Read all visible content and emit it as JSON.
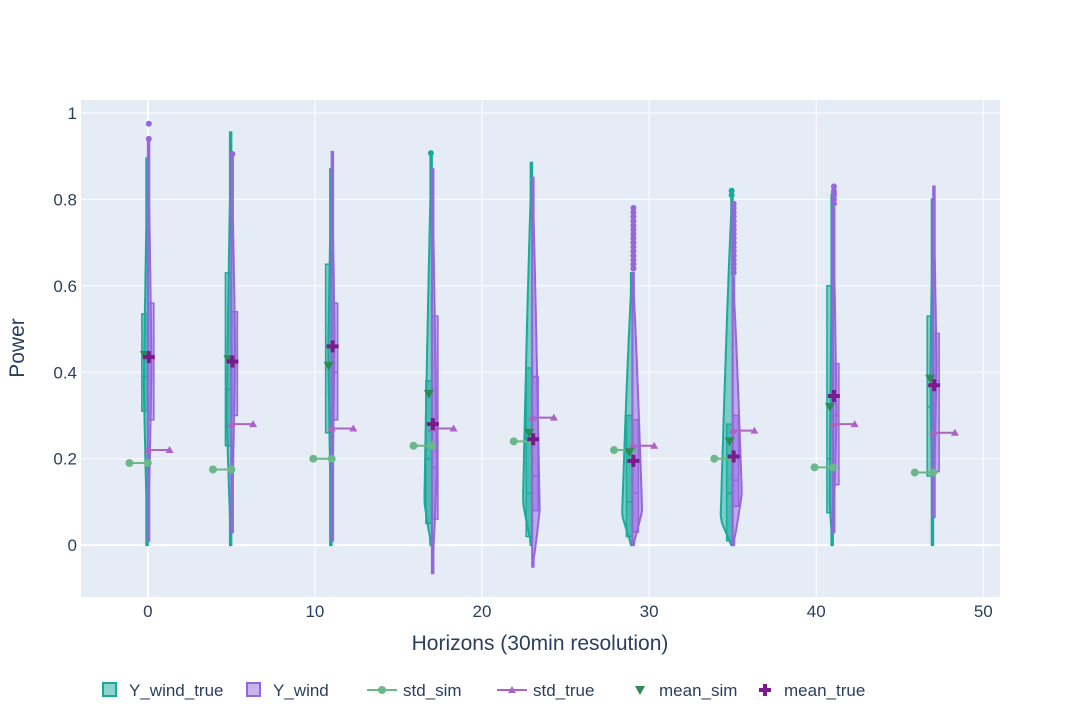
{
  "chart_data": {
    "type": "violin",
    "title": "",
    "xlabel": "Horizons (30min resolution)",
    "ylabel": "Power",
    "xlim": [
      -4,
      51
    ],
    "ylim": [
      -0.12,
      1.03
    ],
    "xticks": [
      0,
      10,
      20,
      30,
      40,
      50
    ],
    "yticks": [
      0,
      0.2,
      0.4,
      0.6,
      0.8,
      1
    ],
    "grid": true,
    "legend_position": "bottom",
    "colors": {
      "plot_bg": "#e5ecf6",
      "grid": "#ffffff",
      "Y_wind_true": "#1aaa9b",
      "Y_wind": "#9467dd",
      "std_sim": "#6cb88a",
      "std_true": "#ab63c4",
      "mean_sim": "#2e8b57",
      "mean_true": "#7b1a8c"
    },
    "legend": [
      {
        "name": "Y_wind_true",
        "kind": "violin-true"
      },
      {
        "name": "Y_wind",
        "kind": "violin-pred"
      },
      {
        "name": "std_sim",
        "kind": "line-circle"
      },
      {
        "name": "std_true",
        "kind": "line-triangle"
      },
      {
        "name": "mean_sim",
        "kind": "triangle-down"
      },
      {
        "name": "mean_true",
        "kind": "cross"
      }
    ],
    "horizons": [
      {
        "x": 0,
        "true": {
          "min": 0.0,
          "max": 0.895,
          "q1": 0.31,
          "median": 0.39,
          "q3": 0.535,
          "mode": 0.37,
          "w": 0.24
        },
        "pred": {
          "min": 0.01,
          "max": 0.94,
          "q1": 0.29,
          "median": 0.44,
          "q3": 0.56,
          "mode": 0.42,
          "w": 0.22
        },
        "outliers_true": [],
        "outliers_pred": [
          0.975,
          0.94
        ],
        "std_sim": 0.19,
        "std_true": 0.22,
        "mean_sim": 0.44,
        "mean_true": 0.435
      },
      {
        "x": 5,
        "true": {
          "min": 0.0,
          "max": 0.955,
          "q1": 0.23,
          "median": 0.36,
          "q3": 0.63,
          "mode": 0.3,
          "w": 0.28
        },
        "pred": {
          "min": 0.03,
          "max": 0.9,
          "q1": 0.3,
          "median": 0.42,
          "q3": 0.54,
          "mode": 0.45,
          "w": 0.23
        },
        "outliers_true": [],
        "outliers_pred": [
          0.905
        ],
        "std_sim": 0.175,
        "std_true": 0.28,
        "mean_sim": 0.43,
        "mean_true": 0.425
      },
      {
        "x": 11,
        "true": {
          "min": 0.0,
          "max": 0.87,
          "q1": 0.26,
          "median": 0.42,
          "q3": 0.65,
          "mode": 0.45,
          "w": 0.2
        },
        "pred": {
          "min": 0.01,
          "max": 0.91,
          "q1": 0.29,
          "median": 0.4,
          "q3": 0.56,
          "mode": 0.48,
          "w": 0.17
        },
        "outliers_true": [],
        "outliers_pred": [],
        "std_sim": 0.2,
        "std_true": 0.27,
        "mean_sim": 0.415,
        "mean_true": 0.46
      },
      {
        "x": 17,
        "true": {
          "min": 0.0,
          "max": 0.905,
          "q1": 0.05,
          "median": 0.2,
          "q3": 0.38,
          "mode": 0.1,
          "w": 0.45
        },
        "pred": {
          "min": -0.065,
          "max": 0.87,
          "q1": 0.06,
          "median": 0.18,
          "q3": 0.53,
          "mode": 0.18,
          "w": 0.3
        },
        "outliers_true": [
          0.907
        ],
        "outliers_pred": [],
        "std_sim": 0.23,
        "std_true": 0.27,
        "mean_sim": 0.35,
        "mean_true": 0.28
      },
      {
        "x": 23,
        "true": {
          "min": 0.0,
          "max": 0.885,
          "q1": 0.02,
          "median": 0.12,
          "q3": 0.41,
          "mode": 0.1,
          "w": 0.55
        },
        "pred": {
          "min": -0.05,
          "max": 0.85,
          "q1": 0.08,
          "median": 0.16,
          "q3": 0.39,
          "mode": 0.08,
          "w": 0.45
        },
        "outliers_true": [],
        "outliers_pred": [],
        "std_sim": 0.24,
        "std_true": 0.295,
        "mean_sim": 0.26,
        "mean_true": 0.245
      },
      {
        "x": 29,
        "true": {
          "min": 0.0,
          "max": 0.63,
          "q1": 0.02,
          "median": 0.1,
          "q3": 0.3,
          "mode": 0.07,
          "w": 0.62
        },
        "pred": {
          "min": 0.0,
          "max": 0.63,
          "q1": 0.03,
          "median": 0.12,
          "q3": 0.29,
          "mode": 0.08,
          "w": 0.58
        },
        "outliers_true": [],
        "outliers_pred": [
          0.78,
          0.77,
          0.76,
          0.75,
          0.74,
          0.73,
          0.72,
          0.71,
          0.7,
          0.69,
          0.68,
          0.67,
          0.66,
          0.65,
          0.64
        ],
        "std_sim": 0.22,
        "std_true": 0.23,
        "mean_sim": 0.215,
        "mean_true": 0.195
      },
      {
        "x": 35,
        "true": {
          "min": 0.0,
          "max": 0.82,
          "q1": 0.01,
          "median": 0.12,
          "q3": 0.28,
          "mode": 0.06,
          "w": 0.72
        },
        "pred": {
          "min": 0.0,
          "max": 0.62,
          "q1": 0.09,
          "median": 0.15,
          "q3": 0.3,
          "mode": 0.12,
          "w": 0.55
        },
        "outliers_true": [
          0.82,
          0.81
        ],
        "outliers_pred": [
          0.79,
          0.78,
          0.77,
          0.76,
          0.75,
          0.74,
          0.73,
          0.72,
          0.71,
          0.7,
          0.69,
          0.68,
          0.67,
          0.66,
          0.65,
          0.64,
          0.63
        ],
        "std_sim": 0.2,
        "std_true": 0.265,
        "mean_sim": 0.24,
        "mean_true": 0.205
      },
      {
        "x": 41,
        "true": {
          "min": 0.0,
          "max": 0.81,
          "q1": 0.075,
          "median": 0.2,
          "q3": 0.6,
          "mode": 0.1,
          "w": 0.2
        },
        "pred": {
          "min": 0.03,
          "max": 0.78,
          "q1": 0.14,
          "median": 0.3,
          "q3": 0.42,
          "mode": 0.3,
          "w": 0.22
        },
        "outliers_true": [],
        "outliers_pred": [
          0.83,
          0.82,
          0.815,
          0.81,
          0.8,
          0.79
        ],
        "std_sim": 0.18,
        "std_true": 0.28,
        "mean_sim": 0.32,
        "mean_true": 0.345
      },
      {
        "x": 47,
        "true": {
          "min": 0.0,
          "max": 0.8,
          "q1": 0.16,
          "median": 0.32,
          "q3": 0.53,
          "mode": 0.4,
          "w": 0.16
        },
        "pred": {
          "min": 0.065,
          "max": 0.83,
          "q1": 0.17,
          "median": 0.38,
          "q3": 0.49,
          "mode": 0.42,
          "w": 0.2
        },
        "outliers_true": [],
        "outliers_pred": [],
        "std_sim": 0.168,
        "std_true": 0.26,
        "mean_sim": 0.385,
        "mean_true": 0.37
      }
    ]
  }
}
